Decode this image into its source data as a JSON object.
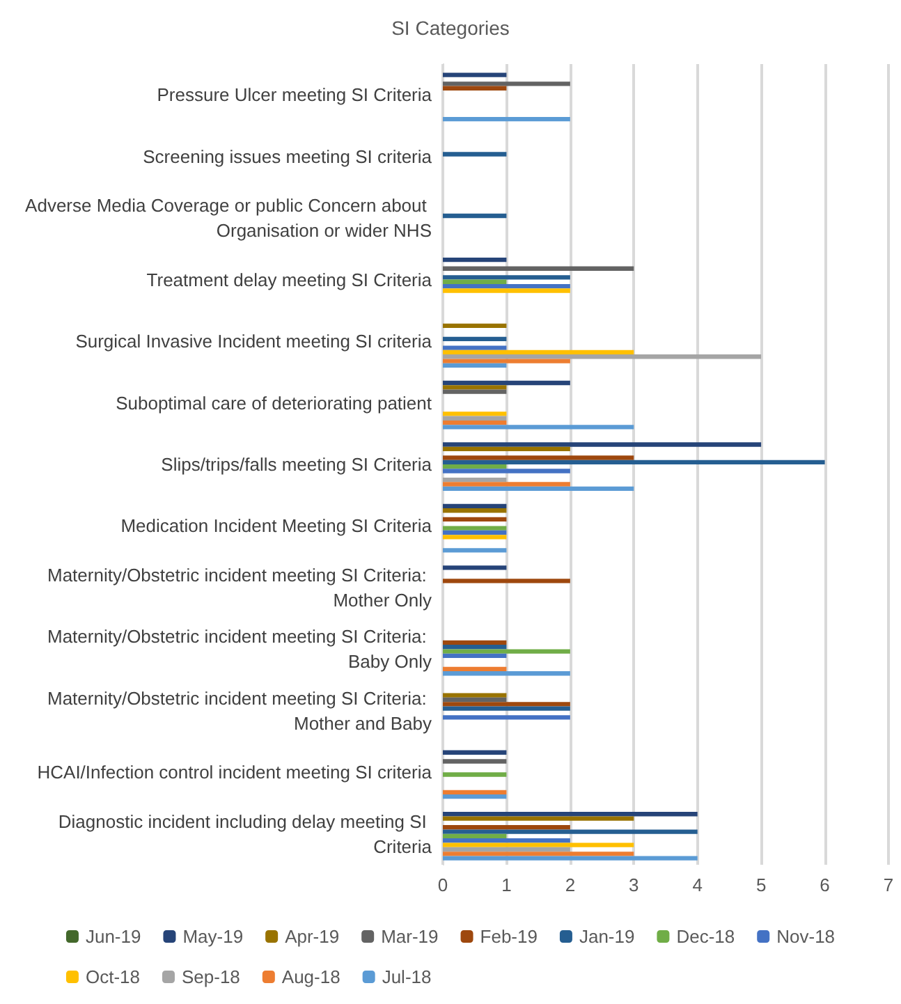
{
  "chart_data": {
    "type": "bar",
    "orientation": "horizontal",
    "title": "SI Categories",
    "categories": [
      "Pressure Ulcer meeting SI Criteria",
      "Screening issues meeting SI criteria",
      "Adverse Media Coverage or public Concern about Organisation or wider NHS",
      "Treatment delay meeting SI Criteria",
      "Surgical Invasive Incident meeting SI criteria",
      "Suboptimal care of deteriorating patient",
      "Slips/trips/falls meeting SI Criteria",
      "Medication Incident Meeting SI Criteria",
      "Maternity/Obstetric incident meeting SI Criteria: Mother Only",
      "Maternity/Obstetric incident meeting SI Criteria: Baby Only",
      "Maternity/Obstetric incident meeting SI Criteria: Mother and Baby",
      "HCAI/Infection control incident meeting SI criteria",
      "Diagnostic incident including delay meeting SI Criteria"
    ],
    "series": [
      {
        "name": "Jun-19",
        "color": "#43682b",
        "values": [
          null,
          null,
          null,
          null,
          null,
          null,
          null,
          null,
          null,
          null,
          null,
          null,
          null
        ]
      },
      {
        "name": "May-19",
        "color": "#264478",
        "values": [
          1,
          null,
          null,
          1,
          null,
          2,
          5,
          1,
          1,
          null,
          null,
          1,
          4
        ]
      },
      {
        "name": "Apr-19",
        "color": "#997300",
        "values": [
          null,
          null,
          null,
          null,
          1,
          1,
          2,
          1,
          null,
          null,
          1,
          null,
          3
        ]
      },
      {
        "name": "Mar-19",
        "color": "#636363",
        "values": [
          2,
          null,
          null,
          3,
          null,
          1,
          null,
          null,
          null,
          null,
          1,
          1,
          null
        ]
      },
      {
        "name": "Feb-19",
        "color": "#9e480e",
        "values": [
          1,
          null,
          null,
          null,
          null,
          null,
          3,
          1,
          2,
          1,
          2,
          null,
          2
        ]
      },
      {
        "name": "Jan-19",
        "color": "#255e91",
        "values": [
          null,
          1,
          1,
          2,
          1,
          null,
          6,
          null,
          null,
          1,
          2,
          null,
          4
        ]
      },
      {
        "name": "Dec-18",
        "color": "#70ad47",
        "values": [
          null,
          null,
          null,
          1,
          null,
          null,
          1,
          1,
          null,
          2,
          null,
          1,
          1
        ]
      },
      {
        "name": "Nov-18",
        "color": "#4472c4",
        "values": [
          null,
          null,
          null,
          2,
          1,
          null,
          2,
          1,
          null,
          1,
          2,
          null,
          2
        ]
      },
      {
        "name": "Oct-18",
        "color": "#ffc000",
        "values": [
          null,
          null,
          null,
          2,
          3,
          1,
          null,
          1,
          null,
          null,
          null,
          null,
          3
        ]
      },
      {
        "name": "Sep-18",
        "color": "#a5a5a5",
        "values": [
          null,
          null,
          null,
          null,
          5,
          1,
          1,
          null,
          null,
          null,
          null,
          null,
          2
        ]
      },
      {
        "name": "Aug-18",
        "color": "#ed7d31",
        "values": [
          null,
          null,
          null,
          null,
          2,
          1,
          2,
          null,
          null,
          1,
          null,
          1,
          3
        ]
      },
      {
        "name": "Jul-18",
        "color": "#5b9bd5",
        "values": [
          2,
          null,
          null,
          null,
          1,
          3,
          3,
          1,
          null,
          2,
          null,
          1,
          4
        ]
      }
    ],
    "xlim": [
      0,
      7
    ],
    "xticks": [
      0,
      1,
      2,
      3,
      4,
      5,
      6,
      7
    ],
    "grid": "x",
    "legend": "bottom"
  }
}
